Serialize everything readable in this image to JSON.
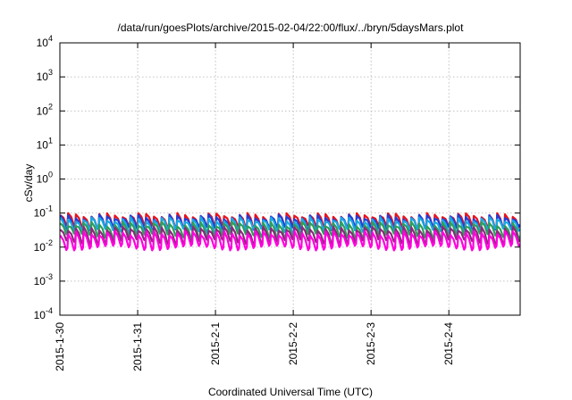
{
  "chart_data": {
    "type": "line",
    "title": "/data/run/goesPlots/archive/2015-02-04/22:00/flux/../bryn/5daysMars.plot",
    "xlabel": "Coordinated Universal Time (UTC)",
    "ylabel": "cSv/day",
    "yscale": "log",
    "ylim": [
      0.0001,
      10000
    ],
    "xlim": [
      "2015-01-30",
      "2015-02-04T22:00"
    ],
    "x_ticks": [
      "2015-1-30",
      "2015-1-31",
      "2015-2-1",
      "2015-2-2",
      "2015-2-3",
      "2015-2-4"
    ],
    "y_ticks": [
      {
        "base": "10",
        "exp": "-4"
      },
      {
        "base": "10",
        "exp": "-3"
      },
      {
        "base": "10",
        "exp": "-2"
      },
      {
        "base": "10",
        "exp": "-1"
      },
      {
        "base": "10",
        "exp": "0"
      },
      {
        "base": "10",
        "exp": "1"
      },
      {
        "base": "10",
        "exp": "2"
      },
      {
        "base": "10",
        "exp": "3"
      },
      {
        "base": "10",
        "exp": "4"
      }
    ],
    "grid": true,
    "sawtooth_cycles_per_day": 10,
    "series": [
      {
        "color": "#e8121c",
        "peak_range": [
          0.075,
          0.1
        ],
        "trough_range": [
          0.035,
          0.045
        ]
      },
      {
        "color": "#1f3fd8",
        "peak_range": [
          0.065,
          0.09
        ],
        "trough_range": [
          0.03,
          0.04
        ]
      },
      {
        "color": "#1ba8e0",
        "peak_range": [
          0.055,
          0.075
        ],
        "trough_range": [
          0.025,
          0.035
        ]
      },
      {
        "color": "#2e9e5a",
        "peak_range": [
          0.04,
          0.055
        ],
        "trough_range": [
          0.018,
          0.025
        ]
      },
      {
        "color": "#8a2a7a",
        "peak_range": [
          0.03,
          0.04
        ],
        "trough_range": [
          0.012,
          0.017
        ]
      },
      {
        "color": "#ff00dd",
        "peak_range": [
          0.022,
          0.03
        ],
        "trough_range": [
          0.008,
          0.011
        ]
      }
    ]
  }
}
